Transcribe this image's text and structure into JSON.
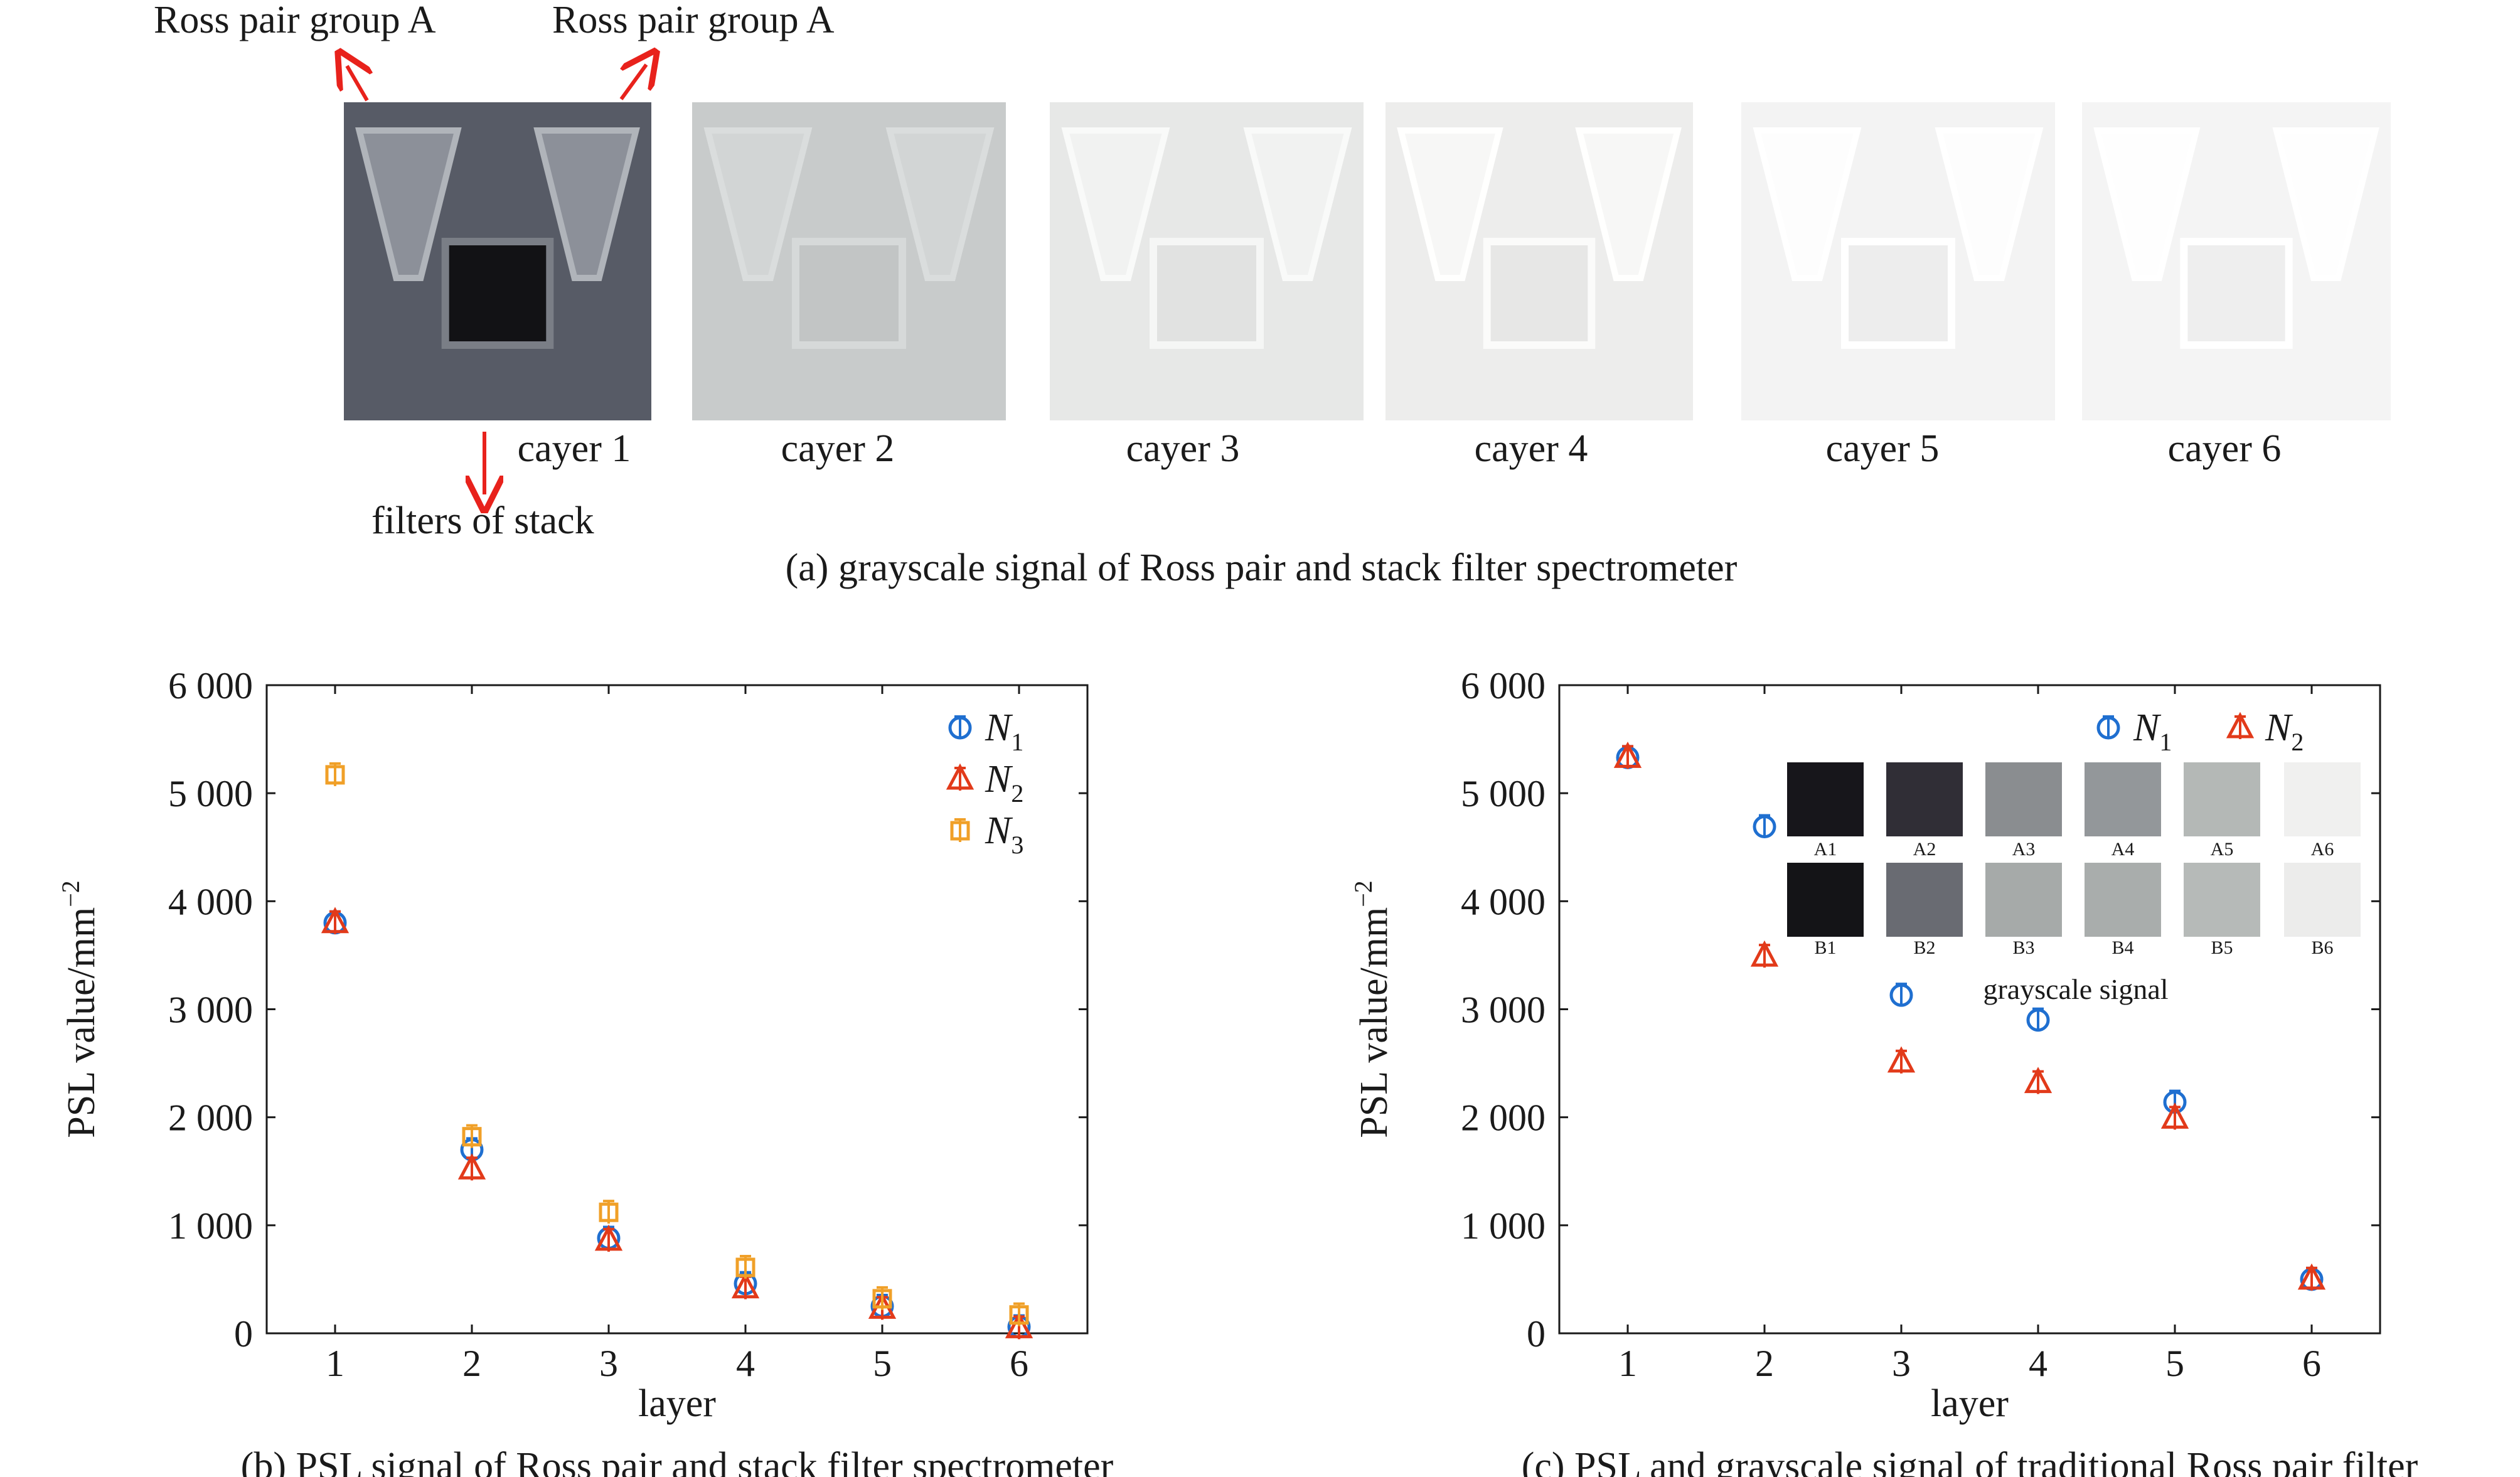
{
  "panel_a": {
    "annotations": {
      "ross_left": "Ross pair group A",
      "ross_right": "Ross pair group A",
      "filters": "filters of stack"
    },
    "layer_labels": [
      "cayer 1",
      "cayer 2",
      "cayer 3",
      "cayer 4",
      "cayer 5",
      "cayer 6"
    ],
    "layer_backgrounds": [
      "#575b66",
      "#c8cbcb",
      "#e7e8e7",
      "#ededec",
      "#f3f3f3",
      "#f4f4f4"
    ],
    "caption": "(a) grayscale signal of Ross pair and stack filter spectrometer"
  },
  "panel_c_inset": {
    "row_a": {
      "labels": [
        "A1",
        "A2",
        "A3",
        "A4",
        "A5",
        "A6"
      ],
      "colors": [
        "#17161b",
        "#302e36",
        "#8a8d90",
        "#93979a",
        "#b4b8b6",
        "#f0f0ef"
      ]
    },
    "row_b": {
      "labels": [
        "B1",
        "B2",
        "B3",
        "B4",
        "B5",
        "B6"
      ],
      "colors": [
        "#141417",
        "#696b72",
        "#a6aaa9",
        "#a9adac",
        "#b6bab8",
        "#ececeb"
      ]
    },
    "title": "grayscale signal"
  },
  "colors": {
    "N1": "#1f6fd0",
    "N2": "#e23a1a",
    "N3": "#f0a028"
  },
  "chart_data": [
    {
      "type": "scatter",
      "caption": "(b) PSL signal of Ross pair and stack filter spectrometer",
      "xlabel": "layer",
      "ylabel": "PSL value/mm",
      "ylabel_exp": "−2",
      "xlim": [
        0.5,
        6.5
      ],
      "ylim": [
        0,
        6000
      ],
      "xticks": [
        1,
        2,
        3,
        4,
        5,
        6
      ],
      "yticks": [
        0,
        1000,
        2000,
        3000,
        4000,
        5000,
        6000
      ],
      "ytick_labels": [
        "0",
        "1 000",
        "2 000",
        "3 000",
        "4 000",
        "5 000",
        "6 000"
      ],
      "legend": "top-right",
      "series": [
        {
          "name": "N",
          "sub": "1",
          "marker": "circle",
          "color": "#1f6fd0",
          "x": [
            1,
            2,
            3,
            4,
            5,
            6
          ],
          "y": [
            3800,
            1700,
            880,
            460,
            250,
            60
          ]
        },
        {
          "name": "N",
          "sub": "2",
          "marker": "triangle",
          "color": "#e23a1a",
          "x": [
            1,
            2,
            3,
            4,
            5,
            6
          ],
          "y": [
            3800,
            1520,
            860,
            420,
            230,
            50
          ]
        },
        {
          "name": "N",
          "sub": "3",
          "marker": "square",
          "color": "#f0a028",
          "x": [
            1,
            2,
            3,
            4,
            5,
            6
          ],
          "y": [
            5170,
            1820,
            1120,
            610,
            320,
            170
          ]
        }
      ]
    },
    {
      "type": "scatter",
      "caption": "(c) PSL and grayscale signal of traditional Ross pair filter",
      "xlabel": "layer",
      "ylabel": "PSL value/mm",
      "ylabel_exp": "−2",
      "xlim": [
        0.5,
        6.5
      ],
      "ylim": [
        0,
        6000
      ],
      "xticks": [
        1,
        2,
        3,
        4,
        5,
        6
      ],
      "yticks": [
        0,
        1000,
        2000,
        3000,
        4000,
        5000,
        6000
      ],
      "ytick_labels": [
        "0",
        "1 000",
        "2 000",
        "3 000",
        "4 000",
        "5 000",
        "6 000"
      ],
      "legend": "top-right",
      "series": [
        {
          "name": "N",
          "sub": "1",
          "marker": "circle",
          "color": "#1f6fd0",
          "x": [
            1,
            2,
            3,
            4,
            5,
            6
          ],
          "y": [
            5330,
            4690,
            3130,
            2900,
            2140,
            500
          ]
        },
        {
          "name": "N",
          "sub": "2",
          "marker": "triangle",
          "color": "#e23a1a",
          "x": [
            1,
            2,
            3,
            4,
            5,
            6
          ],
          "y": [
            5330,
            3490,
            2510,
            2320,
            1990,
            500
          ]
        }
      ]
    }
  ]
}
